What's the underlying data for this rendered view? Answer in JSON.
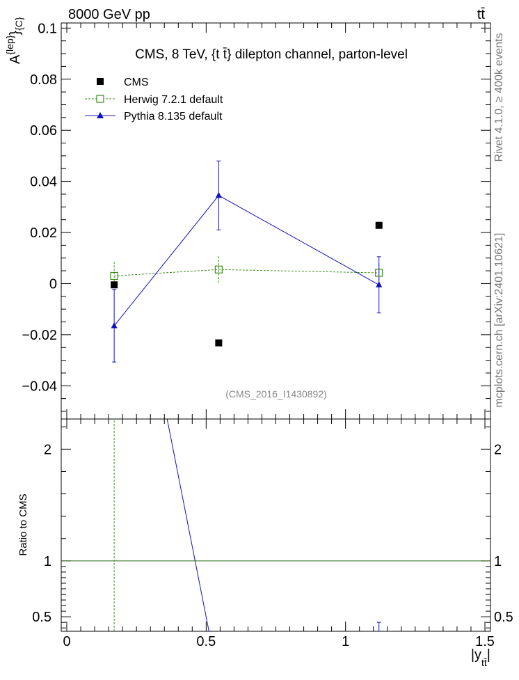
{
  "header": {
    "left": "8000 GeV pp",
    "right": "tt̄"
  },
  "side_text": {
    "top": "Rivet 4.1.0, ≥ 400k events",
    "bottom": "mcplots.cern.ch [arXiv:2401.10621]"
  },
  "colors": {
    "cms": "#000000",
    "herwig": "#3a8c1c",
    "pythia": "#1010c0",
    "ref": "#2e6a1a",
    "muted": "#777777"
  },
  "chart_data": [
    {
      "type": "scatter",
      "panel": "main",
      "title": "CMS, 8 TeV, {t t̄} dilepton channel, parton-level",
      "ylabel": "A^{lep}_{C}",
      "ylabel_main": "A",
      "ylabel_sup": "{lep}",
      "ylabel_sub": "}",
      "ylabel_sub2": "{C}",
      "annotation": "(CMS_2016_I1430892)",
      "xlim": [
        -0.02,
        1.52
      ],
      "ylim": [
        -0.053,
        0.102
      ],
      "yticks": [
        {
          "v": -0.04,
          "label": "−0.04"
        },
        {
          "v": -0.02,
          "label": "−0.02"
        },
        {
          "v": 0,
          "label": "0"
        },
        {
          "v": 0.02,
          "label": "0.02"
        },
        {
          "v": 0.04,
          "label": "0.04"
        },
        {
          "v": 0.06,
          "label": "0.06"
        },
        {
          "v": 0.08,
          "label": "0.08"
        },
        {
          "v": 0.1,
          "label": "0.1"
        }
      ],
      "legend_position": "top-left",
      "series": [
        {
          "name": "CMS",
          "style": "cms",
          "x": [
            0.17,
            0.545,
            1.12
          ],
          "y": [
            -0.0005,
            -0.0232,
            0.0228
          ],
          "err": [
            0,
            0,
            0
          ]
        },
        {
          "name": "Herwig 7.2.1 default",
          "style": "herwig",
          "x": [
            0.17,
            0.545,
            1.12
          ],
          "y": [
            0.003,
            0.0055,
            0.0042
          ],
          "err": [
            0.0055,
            0.0052,
            0.0035
          ]
        },
        {
          "name": "Pythia 8.135 default",
          "style": "pythia",
          "x": [
            0.17,
            0.545,
            1.12
          ],
          "y": [
            -0.0165,
            0.0345,
            -0.0005
          ],
          "err": [
            0.0142,
            0.0135,
            0.011
          ]
        }
      ]
    },
    {
      "type": "line",
      "panel": "ratio",
      "ylabel": "Ratio to CMS",
      "xlabel_main": "|y",
      "xlabel_sub": "tt̄",
      "xlabel_end": "|",
      "xlim": [
        -0.02,
        1.52
      ],
      "ylim": [
        0.37,
        2.27
      ],
      "xticks": [
        {
          "v": 0,
          "label": "0"
        },
        {
          "v": 0.5,
          "label": "0.5"
        },
        {
          "v": 1,
          "label": "1"
        },
        {
          "v": 1.5,
          "label": "1.5"
        }
      ],
      "yticks": [
        {
          "v": 0.5,
          "label": "0.5"
        },
        {
          "v": 1,
          "label": "1"
        },
        {
          "v": 2,
          "label": "2"
        }
      ],
      "reference": 1,
      "series": [
        {
          "name": "Herwig 7.2.1 default",
          "style": "herwig",
          "x": [
            0.17,
            0.17
          ],
          "y": [
            0.37,
            2.27
          ]
        },
        {
          "name": "Pythia 8.135 default",
          "style": "pythia",
          "x": [
            0.36,
            0.51
          ],
          "y": [
            2.27,
            0.37
          ]
        },
        {
          "name": "Pythia 8.135 default error",
          "style": "pythia",
          "x": [
            1.12,
            1.12
          ],
          "y": [
            0.37,
            0.45
          ]
        }
      ]
    }
  ]
}
